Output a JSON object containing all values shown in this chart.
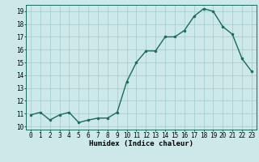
{
  "x": [
    0,
    1,
    2,
    3,
    4,
    5,
    6,
    7,
    8,
    9,
    10,
    11,
    12,
    13,
    14,
    15,
    16,
    17,
    18,
    19,
    20,
    21,
    22,
    23
  ],
  "y": [
    10.9,
    11.1,
    10.5,
    10.9,
    11.1,
    10.3,
    10.5,
    10.65,
    10.65,
    11.1,
    13.5,
    15.0,
    15.9,
    15.9,
    17.0,
    17.0,
    17.5,
    18.6,
    19.2,
    19.0,
    17.8,
    17.2,
    15.3,
    14.3
  ],
  "line_color": "#1a6b5a",
  "marker": "o",
  "marker_size": 2.0,
  "line_width": 1.0,
  "bg_color": "#cce8e8",
  "grid_color": "#aacfcf",
  "xlabel": "Humidex (Indice chaleur)",
  "xlim": [
    -0.5,
    23.5
  ],
  "ylim": [
    9.75,
    19.5
  ],
  "yticks": [
    10,
    11,
    12,
    13,
    14,
    15,
    16,
    17,
    18,
    19
  ],
  "xticks": [
    0,
    1,
    2,
    3,
    4,
    5,
    6,
    7,
    8,
    9,
    10,
    11,
    12,
    13,
    14,
    15,
    16,
    17,
    18,
    19,
    20,
    21,
    22,
    23
  ],
  "tick_fontsize": 5.5,
  "label_fontsize": 6.5
}
